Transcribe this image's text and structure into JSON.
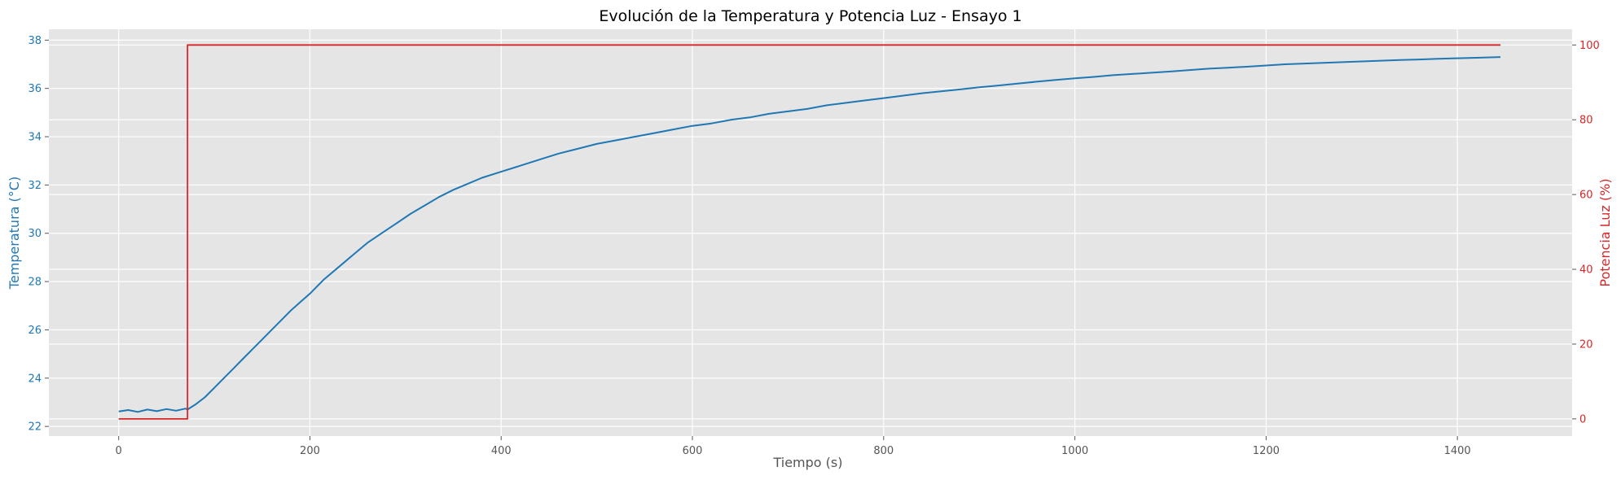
{
  "chart_data": {
    "type": "line",
    "title": "Evolución de la Temperatura y Potencia Luz - Ensayo 1",
    "xlabel": "Tiempo (s)",
    "ylabel": "Temperatura (°C)",
    "y2label": "Potencia Luz (%)",
    "xlim": [
      -73,
      1520
    ],
    "ylim": [
      21.6,
      38.45
    ],
    "y2lim": [
      -4.6,
      104.2
    ],
    "xticks": [
      0,
      200,
      400,
      600,
      800,
      1000,
      1200,
      1400
    ],
    "yticks": [
      22,
      24,
      26,
      28,
      30,
      32,
      34,
      36,
      38
    ],
    "y2ticks": [
      0,
      20,
      40,
      60,
      80,
      100
    ],
    "grid": true,
    "style": "ggplot",
    "colors": {
      "temperature": "#1f77b4",
      "power": "#d62728",
      "background": "#e5e5e5",
      "grid": "#ffffff",
      "tick_text": "#555555"
    },
    "series": [
      {
        "axis": "left",
        "color": "#1f77b4",
        "x": [
          0,
          10,
          20,
          30,
          40,
          50,
          60,
          70,
          72,
          80,
          90,
          100,
          110,
          120,
          130,
          140,
          150,
          160,
          170,
          180,
          190,
          200,
          215,
          230,
          245,
          260,
          275,
          290,
          305,
          320,
          335,
          350,
          365,
          380,
          400,
          420,
          440,
          460,
          480,
          500,
          520,
          540,
          560,
          580,
          600,
          620,
          640,
          660,
          680,
          700,
          720,
          740,
          760,
          780,
          800,
          820,
          840,
          860,
          880,
          900,
          920,
          940,
          960,
          980,
          1000,
          1020,
          1040,
          1060,
          1080,
          1100,
          1120,
          1140,
          1160,
          1180,
          1200,
          1220,
          1240,
          1260,
          1280,
          1300,
          1320,
          1340,
          1360,
          1380,
          1400,
          1420,
          1445
        ],
        "y": [
          22.62,
          22.68,
          22.6,
          22.7,
          22.63,
          22.72,
          22.65,
          22.74,
          22.7,
          22.9,
          23.2,
          23.6,
          24.0,
          24.4,
          24.8,
          25.2,
          25.6,
          26.0,
          26.4,
          26.8,
          27.15,
          27.5,
          28.1,
          28.6,
          29.1,
          29.6,
          30.0,
          30.4,
          30.8,
          31.15,
          31.5,
          31.8,
          32.05,
          32.3,
          32.55,
          32.8,
          33.05,
          33.3,
          33.5,
          33.7,
          33.85,
          34.0,
          34.15,
          34.3,
          34.45,
          34.55,
          34.7,
          34.8,
          34.95,
          35.05,
          35.15,
          35.3,
          35.4,
          35.5,
          35.6,
          35.7,
          35.8,
          35.88,
          35.96,
          36.05,
          36.12,
          36.2,
          36.28,
          36.35,
          36.42,
          36.48,
          36.55,
          36.6,
          36.65,
          36.7,
          36.76,
          36.82,
          36.86,
          36.9,
          36.95,
          37.0,
          37.03,
          37.06,
          37.09,
          37.12,
          37.15,
          37.18,
          37.2,
          37.23,
          37.25,
          37.27,
          37.3
        ]
      },
      {
        "axis": "right",
        "color": "#d62728",
        "x": [
          0,
          72,
          72,
          1445
        ],
        "y": [
          0,
          0,
          100,
          100
        ]
      }
    ]
  }
}
